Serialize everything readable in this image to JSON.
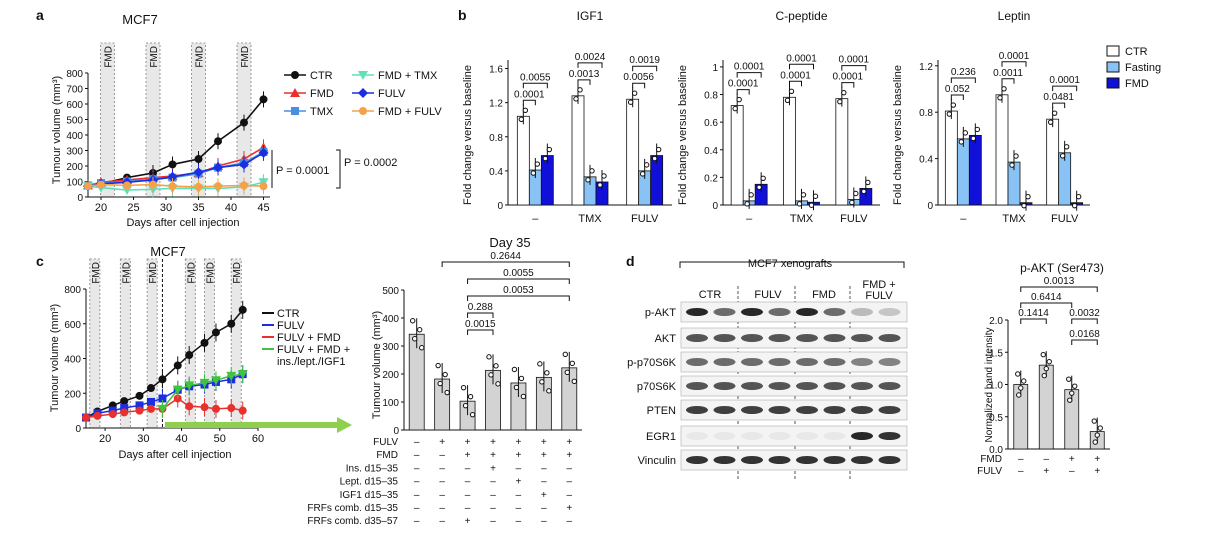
{
  "panels": {
    "a": {
      "label": "a",
      "title": "MCF7",
      "xlabel": "Days after cell injection",
      "ylabel": "Tumour volume (mm³)",
      "fmd": "FMD",
      "p1": "P = 0.0001",
      "p2": "P = 0.0002",
      "legend": [
        "CTR",
        "FMD",
        "TMX",
        "FMD + TMX",
        "FULV",
        "FMD + FULV"
      ]
    },
    "b": {
      "label": "b",
      "titles": [
        "IGF1",
        "C-peptide",
        "Leptin"
      ],
      "ylabel": "Fold change versus baseline",
      "groups": [
        "–",
        "TMX",
        "FULV"
      ],
      "legend": [
        "CTR",
        "Fasting",
        "FMD"
      ]
    },
    "c": {
      "label": "c",
      "title": "MCF7",
      "title2": "Day 35",
      "xlabel": "Days after cell injection",
      "ylabel": "Tumour volume (mm³)",
      "fmd": "FMD",
      "legend": [
        "CTR",
        "FULV",
        "FULV + FMD",
        "FULV + FMD +",
        "ins./lept./IGF1"
      ],
      "table_rows": [
        "FULV",
        "FMD",
        "Ins. d15–35",
        "Lept. d15–35",
        "IGF1 d15–35",
        "FRFs comb. d15–35",
        "FRFs comb. d35–57"
      ],
      "table_marks": [
        [
          "–",
          "+",
          "+",
          "+",
          "+",
          "+",
          "+"
        ],
        [
          "–",
          "–",
          "+",
          "+",
          "+",
          "+",
          "+"
        ],
        [
          "–",
          "–",
          "–",
          "+",
          "–",
          "–",
          "–"
        ],
        [
          "–",
          "–",
          "–",
          "–",
          "+",
          "–",
          "–"
        ],
        [
          "–",
          "–",
          "–",
          "–",
          "–",
          "+",
          "–"
        ],
        [
          "–",
          "–",
          "–",
          "–",
          "–",
          "–",
          "+"
        ],
        [
          "–",
          "–",
          "+",
          "–",
          "–",
          "–",
          "–"
        ]
      ],
      "pvals": [
        "0.2644",
        "0.0055",
        "0.0053",
        "0.288",
        "0.0015"
      ]
    },
    "d": {
      "label": "d",
      "blot_title": "MCF7 xenografts",
      "lanes": [
        "CTR",
        "FULV",
        "FMD",
        "FMD +",
        "FULV"
      ],
      "bands": [
        "p-AKT",
        "AKT",
        "p-p70S6K",
        "p70S6K",
        "PTEN",
        "EGR1",
        "Vinculin"
      ],
      "title": "p-AKT (Ser473)",
      "ylabel": "Normalized band intensity",
      "row_labels": [
        "FMD",
        "FULV"
      ],
      "table_marks": [
        [
          "–",
          "–",
          "+",
          "+"
        ],
        [
          "–",
          "+",
          "–",
          "+"
        ]
      ],
      "pvals": [
        "0.0013",
        "0.6414",
        "0.1414",
        "0.0032",
        "0.0168"
      ]
    }
  },
  "colors": {
    "ctr": "#111111",
    "fmd": "#e8302c",
    "tmx": "#4a8fe0",
    "fmd_tmx": "#5fe0b8",
    "fulv": "#1b2fe0",
    "fmd_fulv": "#f5a14a",
    "green": "#3ec43e",
    "fasting": "#89c2f5",
    "fmdbar": "#1010d8",
    "grey": "#d3d3d3",
    "arrow": "#8ecf4e"
  },
  "chart_data": [
    {
      "type": "line",
      "panel": "a",
      "title": "MCF7",
      "xlabel": "Days after cell injection",
      "ylabel": "Tumour volume (mm³)",
      "xlim": [
        18,
        46
      ],
      "ylim": [
        0,
        800
      ],
      "xticks": [
        20,
        25,
        30,
        35,
        40,
        45
      ],
      "yticks": [
        0,
        100,
        200,
        300,
        400,
        500,
        600,
        700,
        800
      ],
      "fmd_cycles": [
        21,
        28,
        35,
        42
      ],
      "series": [
        {
          "name": "CTR",
          "x": [
            18,
            20,
            24,
            28,
            31,
            35,
            38,
            42,
            45
          ],
          "y": [
            70,
            85,
            125,
            155,
            210,
            245,
            360,
            480,
            630
          ]
        },
        {
          "name": "FMD",
          "x": [
            18,
            20,
            24,
            28,
            31,
            35,
            38,
            42,
            45
          ],
          "y": [
            75,
            95,
            110,
            125,
            135,
            155,
            200,
            245,
            320
          ]
        },
        {
          "name": "TMX",
          "x": [
            18,
            20,
            24,
            28,
            31,
            35,
            38,
            42,
            45
          ],
          "y": [
            75,
            90,
            100,
            115,
            125,
            150,
            190,
            220,
            290
          ]
        },
        {
          "name": "FMD + TMX",
          "x": [
            18,
            20,
            24,
            28,
            31,
            35,
            38,
            42,
            45
          ],
          "y": [
            70,
            60,
            45,
            50,
            55,
            55,
            55,
            65,
            95
          ]
        },
        {
          "name": "FULV",
          "x": [
            18,
            20,
            24,
            28,
            31,
            35,
            38,
            42,
            45
          ],
          "y": [
            70,
            85,
            95,
            110,
            130,
            160,
            190,
            210,
            285
          ]
        },
        {
          "name": "FMD + FULV",
          "x": [
            18,
            20,
            24,
            28,
            31,
            35,
            38,
            42,
            45
          ],
          "y": [
            70,
            80,
            75,
            80,
            70,
            65,
            70,
            75,
            70
          ]
        }
      ]
    },
    {
      "type": "bar",
      "panel": "b",
      "title": "IGF1",
      "ylabel": "Fold change versus baseline",
      "ylim": [
        0,
        1.7
      ],
      "yticks": [
        0,
        0.4,
        0.8,
        1.2,
        1.6
      ],
      "categories": [
        "–",
        "TMX",
        "FULV"
      ],
      "series": [
        {
          "name": "CTR",
          "values": [
            1.04,
            1.28,
            1.24
          ]
        },
        {
          "name": "Fasting",
          "values": [
            0.41,
            0.33,
            0.4
          ]
        },
        {
          "name": "FMD",
          "values": [
            0.58,
            0.27,
            0.58
          ]
        }
      ],
      "pvalues": [
        "0.0001",
        "0.0055",
        "0.0013",
        "0.0024",
        "0.0056",
        "0.0019"
      ]
    },
    {
      "type": "bar",
      "panel": "b",
      "title": "C-peptide",
      "ylabel": "Fold change versus baseline",
      "ylim": [
        0,
        1.05
      ],
      "yticks": [
        0,
        0.2,
        0.4,
        0.6,
        0.8,
        1.0
      ],
      "categories": [
        "–",
        "TMX",
        "FULV"
      ],
      "series": [
        {
          "name": "CTR",
          "values": [
            0.72,
            0.78,
            0.77
          ]
        },
        {
          "name": "Fasting",
          "values": [
            0.03,
            0.03,
            0.04
          ]
        },
        {
          "name": "FMD",
          "values": [
            0.15,
            0.02,
            0.12
          ]
        }
      ],
      "pvalues": [
        "0.0001",
        "0.0001",
        "0.0001",
        "0.0001",
        "0.0001",
        "0.0001"
      ]
    },
    {
      "type": "bar",
      "panel": "b",
      "title": "Leptin",
      "ylabel": "Fold change versus baseline",
      "ylim": [
        0,
        1.25
      ],
      "yticks": [
        0,
        0.4,
        0.8,
        1.2
      ],
      "categories": [
        "–",
        "TMX",
        "FULV"
      ],
      "series": [
        {
          "name": "CTR",
          "values": [
            0.81,
            0.95,
            0.74
          ]
        },
        {
          "name": "Fasting",
          "values": [
            0.57,
            0.37,
            0.45
          ]
        },
        {
          "name": "FMD",
          "values": [
            0.6,
            0.02,
            0.02
          ]
        }
      ],
      "pvalues": [
        "0.052",
        "0.236",
        "0.0011",
        "0.0001",
        "0.0481",
        "0.0001"
      ]
    },
    {
      "type": "line",
      "panel": "c",
      "title": "MCF7",
      "xlabel": "Days after cell injection",
      "ylabel": "Tumour volume (mm³)",
      "xlim": [
        15,
        60
      ],
      "ylim": [
        0,
        800
      ],
      "xticks": [
        20,
        30,
        40,
        50,
        60
      ],
      "yticks": [
        0,
        200,
        400,
        600,
        800
      ],
      "fmd_cycles": [
        16,
        24,
        31,
        41,
        46,
        53
      ],
      "series": [
        {
          "name": "CTR",
          "x": [
            15,
            18,
            22,
            25,
            29,
            32,
            35,
            39,
            42,
            46,
            49,
            53,
            56
          ],
          "y": [
            60,
            95,
            130,
            155,
            185,
            230,
            280,
            360,
            420,
            490,
            550,
            600,
            680
          ]
        },
        {
          "name": "FULV",
          "x": [
            15,
            18,
            22,
            25,
            29,
            32,
            35,
            39,
            42,
            46,
            49,
            53,
            56
          ],
          "y": [
            60,
            85,
            100,
            115,
            130,
            150,
            170,
            220,
            240,
            250,
            265,
            280,
            310
          ]
        },
        {
          "name": "FULV + FMD",
          "x": [
            15,
            18,
            22,
            25,
            29,
            32,
            35,
            39,
            42,
            46,
            49,
            53,
            56
          ],
          "y": [
            60,
            70,
            80,
            90,
            100,
            110,
            110,
            170,
            125,
            120,
            110,
            115,
            100
          ]
        },
        {
          "name": "FULV + FMD + ins./lept./IGF1",
          "x": [
            35,
            39,
            42,
            46,
            49,
            53,
            56
          ],
          "y": [
            110,
            220,
            245,
            260,
            275,
            300,
            310
          ]
        }
      ]
    },
    {
      "type": "bar",
      "panel": "c",
      "title": "Day 35",
      "ylabel": "Tumour volume (mm³)",
      "ylim": [
        0,
        500
      ],
      "yticks": [
        0,
        100,
        200,
        300,
        400,
        500
      ],
      "values": [
        342,
        182,
        103,
        213,
        168,
        188,
        222
      ],
      "pvalues": [
        "0.2644",
        "0.0055",
        "0.0053",
        "0.288",
        "0.0015"
      ]
    },
    {
      "type": "bar",
      "panel": "d",
      "title": "p-AKT (Ser473)",
      "ylabel": "Normalized band intensity",
      "ylim": [
        0,
        2.0
      ],
      "yticks": [
        0,
        0.5,
        1.0,
        1.5,
        2.0
      ],
      "values": [
        1.0,
        1.3,
        0.92,
        0.27
      ],
      "pvalues": [
        "0.0013",
        "0.6414",
        "0.1414",
        "0.0032",
        "0.0168"
      ]
    }
  ]
}
